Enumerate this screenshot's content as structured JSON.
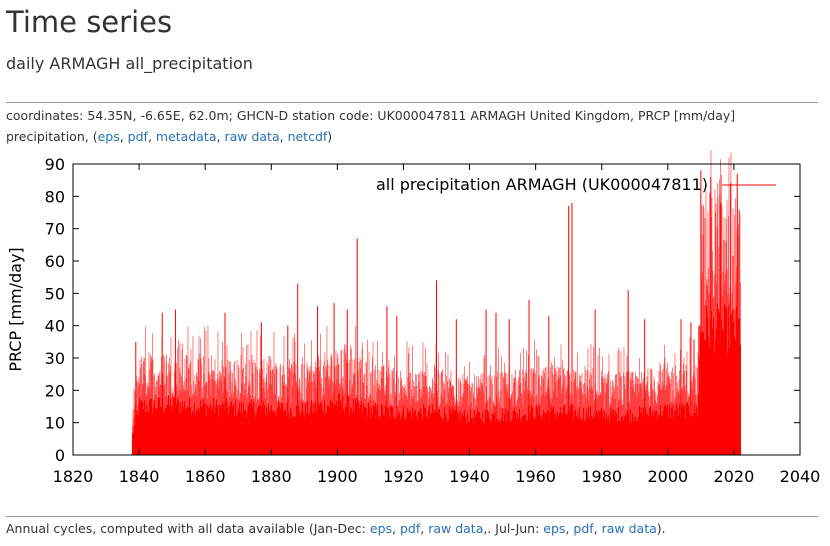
{
  "page": {
    "title": "Time series",
    "subtitle": "daily ARMAGH all_precipitation"
  },
  "meta": {
    "text": "coordinates: 54.35N, -6.65E, 62.0m; GHCN-D station code: UK000047811 ARMAGH United Kingdom, PRCP [mm/day] precipitation, (",
    "links": [
      "eps",
      "pdf",
      "metadata",
      "raw data",
      "netcdf"
    ],
    "close": ")"
  },
  "footer": {
    "prefix": "Annual cycles, computed with all data available (Jan-Dec: ",
    "links_jan_dec": [
      "eps",
      "pdf",
      "raw data"
    ],
    "middle": ",. Jul-Jun: ",
    "links_jul_jun": [
      "eps",
      "pdf",
      "raw data"
    ],
    "suffix": ")."
  },
  "colors": {
    "series": "#ff0000",
    "link": "#2a6fb5"
  },
  "chart_data": {
    "type": "bar",
    "title": "",
    "xlabel": "",
    "ylabel": "PRCP [mm/day]",
    "xlim": [
      1820,
      2040
    ],
    "ylim": [
      0,
      90
    ],
    "xticks": [
      1820,
      1840,
      1860,
      1880,
      1900,
      1920,
      1940,
      1960,
      1980,
      2000,
      2020,
      2040
    ],
    "yticks": [
      0,
      10,
      20,
      30,
      40,
      50,
      60,
      70,
      80,
      90
    ],
    "grid": false,
    "legend_position": "top-right",
    "series": [
      {
        "name": "all precipitation ARMAGH (UK000047811)",
        "color": "#ff0000",
        "x_range": [
          1838,
          2022
        ],
        "typical_envelope": [
          {
            "x": 1838,
            "y": 10
          },
          {
            "x": 1840,
            "y": 24
          },
          {
            "x": 1850,
            "y": 25
          },
          {
            "x": 1860,
            "y": 24
          },
          {
            "x": 1870,
            "y": 23
          },
          {
            "x": 1880,
            "y": 23
          },
          {
            "x": 1890,
            "y": 22
          },
          {
            "x": 1900,
            "y": 26
          },
          {
            "x": 1910,
            "y": 22
          },
          {
            "x": 1920,
            "y": 21
          },
          {
            "x": 1930,
            "y": 21
          },
          {
            "x": 1940,
            "y": 19
          },
          {
            "x": 1950,
            "y": 20
          },
          {
            "x": 1960,
            "y": 21
          },
          {
            "x": 1970,
            "y": 21
          },
          {
            "x": 1980,
            "y": 20
          },
          {
            "x": 1990,
            "y": 20
          },
          {
            "x": 2000,
            "y": 22
          },
          {
            "x": 2009,
            "y": 22
          },
          {
            "x": 2010,
            "y": 63
          },
          {
            "x": 2022,
            "y": 62
          }
        ],
        "peaks": [
          {
            "x": 1839,
            "y": 35
          },
          {
            "x": 1847,
            "y": 44
          },
          {
            "x": 1851,
            "y": 45
          },
          {
            "x": 1866,
            "y": 44
          },
          {
            "x": 1877,
            "y": 41
          },
          {
            "x": 1885,
            "y": 40
          },
          {
            "x": 1888,
            "y": 53
          },
          {
            "x": 1894,
            "y": 46
          },
          {
            "x": 1899,
            "y": 47
          },
          {
            "x": 1903,
            "y": 45
          },
          {
            "x": 1906,
            "y": 67
          },
          {
            "x": 1915,
            "y": 46
          },
          {
            "x": 1918,
            "y": 43
          },
          {
            "x": 1930,
            "y": 54
          },
          {
            "x": 1936,
            "y": 42
          },
          {
            "x": 1945,
            "y": 45
          },
          {
            "x": 1948,
            "y": 44
          },
          {
            "x": 1952,
            "y": 42
          },
          {
            "x": 1958,
            "y": 48
          },
          {
            "x": 1964,
            "y": 43
          },
          {
            "x": 1970,
            "y": 77
          },
          {
            "x": 1971,
            "y": 78
          },
          {
            "x": 1978,
            "y": 45
          },
          {
            "x": 1988,
            "y": 51
          },
          {
            "x": 1993,
            "y": 42
          },
          {
            "x": 2004,
            "y": 42
          },
          {
            "x": 2007,
            "y": 41
          },
          {
            "x": 2010,
            "y": 88
          },
          {
            "x": 2013,
            "y": 86
          },
          {
            "x": 2016,
            "y": 78
          },
          {
            "x": 2019,
            "y": 84
          },
          {
            "x": 2021,
            "y": 87
          }
        ]
      }
    ]
  }
}
